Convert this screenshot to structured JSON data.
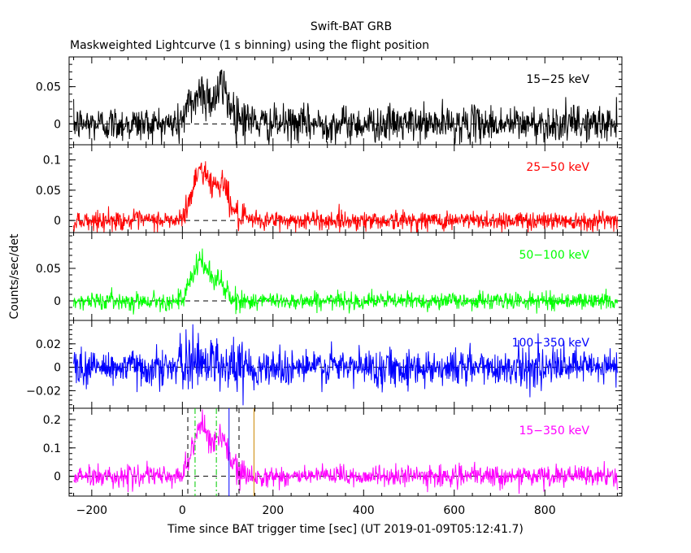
{
  "chart_data": {
    "type": "line",
    "title": "Swift-BAT GRB",
    "subtitle": "Maskweighted Lightcurve (1 s binning) using the flight position",
    "xlabel": "Time since BAT trigger time [sec] (UT 2019-01-09T05:12:41.7)",
    "ylabel": "Counts/sec/det",
    "xlim": [
      -250,
      970
    ],
    "x_ticks": [
      -200,
      0,
      200,
      400,
      600,
      800
    ],
    "x_tick_labels": [
      "−200",
      "0",
      "200",
      "400",
      "600",
      "800"
    ],
    "data_range": [
      -240,
      960
    ],
    "panels": [
      {
        "name": "15-25 keV",
        "label": "15−25 keV",
        "color": "#000000",
        "ylim": [
          -0.028,
          0.09
        ],
        "ticks": [
          0,
          0.05
        ],
        "tick_labels": [
          "0",
          "0.05"
        ],
        "noise": 0.012,
        "peak": 0.045,
        "rise": [
          -10,
          40
        ],
        "decay": [
          40,
          180
        ],
        "bump": [
          90,
          0.025
        ]
      },
      {
        "name": "25-50 keV",
        "label": "25−50 keV",
        "color": "#ff0000",
        "ylim": [
          -0.02,
          0.125
        ],
        "ticks": [
          0,
          0.05,
          0.1
        ],
        "tick_labels": [
          "0",
          "0.05",
          "0.1"
        ],
        "noise": 0.008,
        "peak": 0.09,
        "rise": [
          0,
          40
        ],
        "decay": [
          40,
          140
        ],
        "bump": [
          90,
          0.03
        ]
      },
      {
        "name": "50-100 keV",
        "label": "50−100 keV",
        "color": "#00ff00",
        "ylim": [
          -0.03,
          0.105
        ],
        "ticks": [
          0,
          0.05
        ],
        "tick_labels": [
          "0",
          "0.05"
        ],
        "noise": 0.0065,
        "peak": 0.065,
        "rise": [
          0,
          40
        ],
        "decay": [
          40,
          110
        ],
        "bump": [
          85,
          0.015
        ]
      },
      {
        "name": "100-350 keV",
        "label": "100−350 keV",
        "color": "#0000ff",
        "ylim": [
          -0.035,
          0.04
        ],
        "ticks": [
          -0.02,
          0,
          0.02
        ],
        "tick_labels": [
          "−0.02",
          "0",
          "0.02"
        ],
        "noise": 0.008,
        "peak": 0.008,
        "rise": [
          0,
          40
        ],
        "decay": [
          40,
          100
        ],
        "bump": [
          80,
          0.004
        ]
      },
      {
        "name": "15-350 keV",
        "label": "15−350 keV",
        "color": "#ff00ff",
        "ylim": [
          -0.07,
          0.24
        ],
        "ticks": [
          0,
          0.1,
          0.2
        ],
        "tick_labels": [
          "0",
          "0.1",
          "0.2"
        ],
        "noise": 0.018,
        "peak": 0.19,
        "rise": [
          0,
          40
        ],
        "decay": [
          40,
          140
        ],
        "bump": [
          90,
          0.06
        ]
      }
    ],
    "panel5_vlines": [
      {
        "x": 12,
        "color": "#000000",
        "style": "dashed"
      },
      {
        "x": 28,
        "color": "#00cc00",
        "style": "dashdot"
      },
      {
        "x": 75,
        "color": "#00cc00",
        "style": "dashdot"
      },
      {
        "x": 103,
        "color": "#0000ff",
        "style": "solid"
      },
      {
        "x": 125,
        "color": "#000000",
        "style": "dashed"
      },
      {
        "x": 158,
        "color": "#cc8800",
        "style": "solid"
      }
    ]
  }
}
